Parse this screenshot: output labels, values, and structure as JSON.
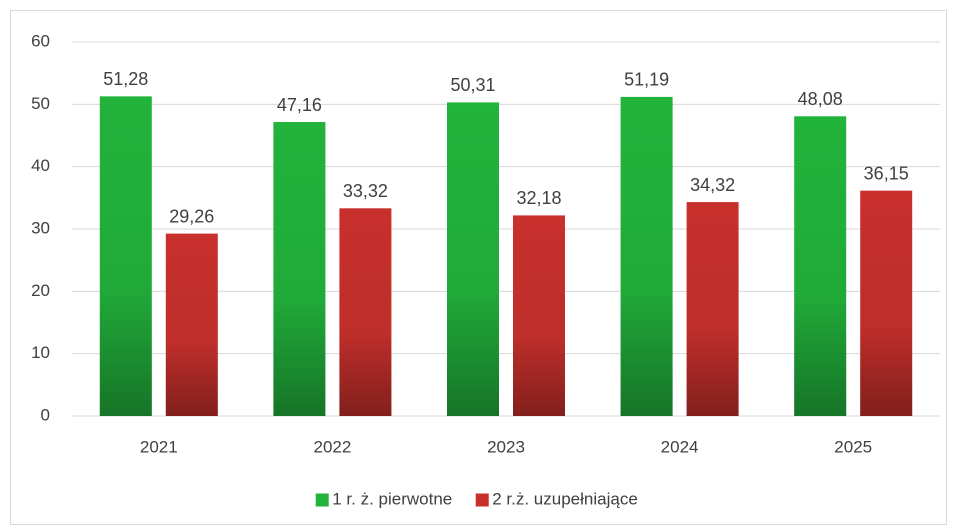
{
  "chart_data": {
    "type": "bar",
    "categories": [
      "2021",
      "2022",
      "2023",
      "2024",
      "2025"
    ],
    "series": [
      {
        "name": "1 r. ż. pierwotne",
        "color": "#22b33c",
        "values": [
          51.28,
          47.16,
          50.31,
          51.19,
          48.08
        ],
        "value_labels": [
          "51,28",
          "47,16",
          "50,31",
          "51,19",
          "48,08"
        ]
      },
      {
        "name": "2 r.ż. uzupełniające",
        "color": "#c8302c",
        "values": [
          29.26,
          33.32,
          32.18,
          34.32,
          36.15
        ],
        "value_labels": [
          "29,26",
          "33,32",
          "32,18",
          "34,32",
          "36,15"
        ]
      }
    ],
    "ylim": [
      0,
      60
    ],
    "yticks": [
      0,
      10,
      20,
      30,
      40,
      50,
      60
    ],
    "grid": true,
    "legend": "bottom"
  }
}
